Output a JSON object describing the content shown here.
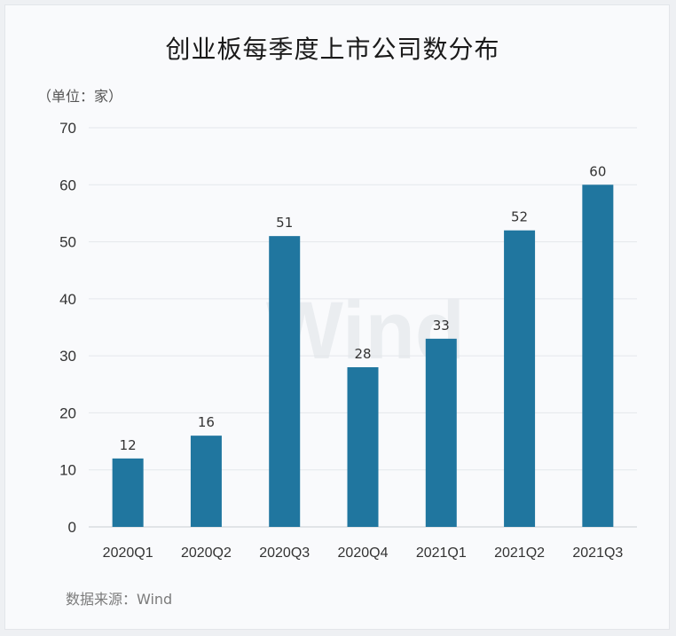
{
  "chart_data": {
    "type": "bar",
    "title": "创业板每季度上市公司数分布",
    "unit_label": "（单位：家）",
    "source_label": "数据来源：Wind",
    "watermark": "Wind",
    "categories": [
      "2020Q1",
      "2020Q2",
      "2020Q3",
      "2020Q4",
      "2021Q1",
      "2021Q2",
      "2021Q3"
    ],
    "values": [
      12,
      16,
      51,
      28,
      33,
      52,
      60
    ],
    "ylim": [
      0,
      70
    ],
    "yticks": [
      0,
      10,
      20,
      30,
      40,
      50,
      60,
      70
    ],
    "grid": true,
    "bar_color": "#20769f",
    "xlabel": "",
    "ylabel": ""
  }
}
